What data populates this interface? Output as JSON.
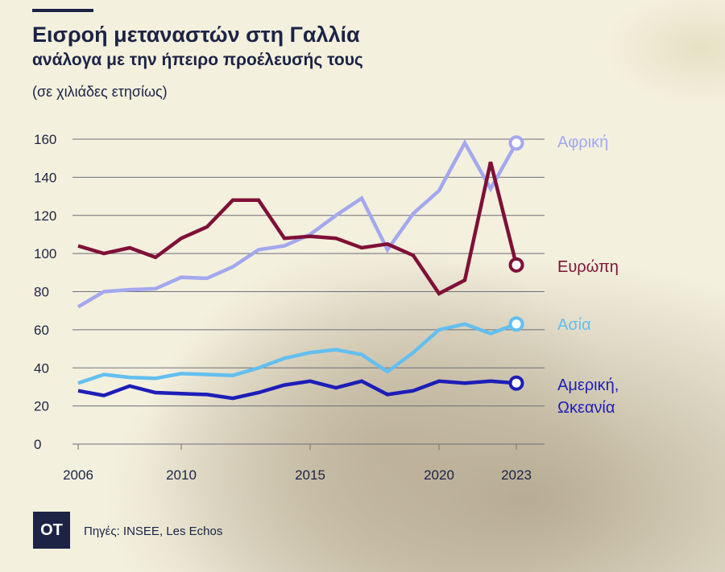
{
  "header": {
    "title": "Εισροή μεταναστών στη Γαλλία",
    "subtitle": "ανάλογα με την ήπειρο προέλευσής τους",
    "unit": "(σε χιλιάδες ετησίως)"
  },
  "footer": {
    "logo": "OT",
    "source": "Πηγές: INSEE, Les Echos"
  },
  "chart_data": {
    "type": "line",
    "title": "Εισροή μεταναστών στη Γαλλία",
    "subtitle": "ανάλογα με την ήπειρο προέλευσής τους",
    "ylabel": "(σε χιλιάδες ετησίως)",
    "xlabel": "",
    "ylim": [
      0,
      160
    ],
    "xlim": [
      2006,
      2023
    ],
    "yticks": [
      0,
      20,
      40,
      60,
      80,
      100,
      120,
      140,
      160
    ],
    "xticks": [
      2006,
      2010,
      2015,
      2020,
      2023
    ],
    "grid": "horizontal",
    "legend": "right-end labels",
    "series": [
      {
        "name": "Αφρική",
        "color": "#a3a8ee",
        "x": [
          2006,
          2007,
          2008,
          2009,
          2010,
          2011,
          2012,
          2013,
          2014,
          2015,
          2016,
          2017,
          2018,
          2019,
          2020,
          2021,
          2022,
          2023
        ],
        "values": [
          72,
          80,
          81,
          81.5,
          87.5,
          87,
          93,
          102,
          104,
          110,
          120,
          129,
          102,
          121,
          133,
          158,
          134,
          158
        ]
      },
      {
        "name": "Ευρώπη",
        "color": "#7f1037",
        "x": [
          2006,
          2007,
          2008,
          2009,
          2010,
          2011,
          2012,
          2013,
          2014,
          2015,
          2016,
          2017,
          2018,
          2019,
          2020,
          2021,
          2022,
          2023
        ],
        "values": [
          104,
          100,
          103,
          98,
          108,
          114,
          128,
          128,
          108,
          109,
          108,
          103,
          105,
          99,
          79,
          86,
          148,
          94
        ]
      },
      {
        "name": "Ασία",
        "color": "#63bff0",
        "x": [
          2006,
          2007,
          2008,
          2009,
          2010,
          2011,
          2012,
          2013,
          2014,
          2015,
          2016,
          2017,
          2018,
          2019,
          2020,
          2021,
          2022,
          2023
        ],
        "values": [
          32,
          36.5,
          35,
          34.5,
          37,
          36.5,
          36,
          40,
          45,
          48,
          49.5,
          47,
          38,
          48,
          60,
          63,
          58,
          63
        ]
      },
      {
        "name": "Αμερική, Ωκεανία",
        "color": "#1d1db8",
        "x": [
          2006,
          2007,
          2008,
          2009,
          2010,
          2011,
          2012,
          2013,
          2014,
          2015,
          2016,
          2017,
          2018,
          2019,
          2020,
          2021,
          2022,
          2023
        ],
        "values": [
          28,
          25.5,
          30.5,
          27,
          26.5,
          26,
          24,
          27,
          31,
          33,
          29.5,
          33,
          26,
          28,
          33,
          32,
          33,
          32
        ]
      }
    ],
    "end_labels": {
      "africa": "Αφρική",
      "europe": "Ευρώπη",
      "asia": "Ασία",
      "americas_line1": "Αμερική,",
      "americas_line2": "Ωκεανία"
    }
  }
}
